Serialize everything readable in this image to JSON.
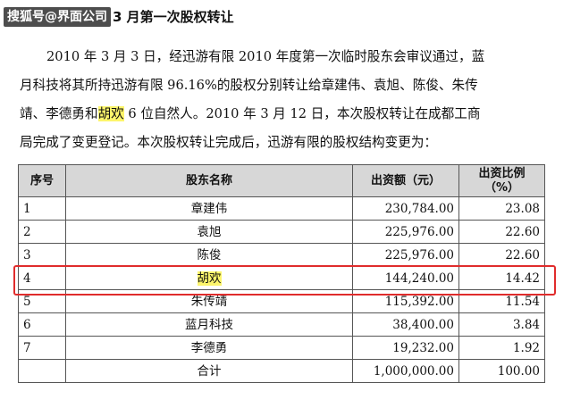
{
  "heading": {
    "watermark": "搜狐号@界面公司",
    "title": "3 月第一次股权转让"
  },
  "paragraph": {
    "line1": "2010 年 3 月 3 日，经迅游有限 2010 年度第一次临时股东会审议通过，蓝",
    "line2": "月科技将其所持迅游有限 96.16%的股权分别转让给章建伟、袁旭、陈俊、朱传",
    "line3_pre": "靖、李德勇和",
    "line3_hl": "胡欢",
    "line3_post": " 6 位自然人。2010 年 3 月 12 日，本次股权转让在成都工商",
    "line4": "局完成了变更登记。本次股权转让完成后，迅游有限的股权结构变更为："
  },
  "table": {
    "headers": {
      "no": "序号",
      "name": "股东名称",
      "amount": "出资额（元）",
      "ratio_l1": "出资比例",
      "ratio_l2": "（%）"
    },
    "rows": [
      {
        "no": "1",
        "name": "章建伟",
        "amount": "230,784.00",
        "ratio": "23.08"
      },
      {
        "no": "2",
        "name": "袁旭",
        "amount": "225,976.00",
        "ratio": "22.60"
      },
      {
        "no": "3",
        "name": "陈俊",
        "amount": "225,976.00",
        "ratio": "22.60"
      },
      {
        "no": "4",
        "name": "胡欢",
        "amount": "144,240.00",
        "ratio": "14.42"
      },
      {
        "no": "5",
        "name": "朱传靖",
        "amount": "115,392.00",
        "ratio": "11.54"
      },
      {
        "no": "6",
        "name": "蓝月科技",
        "amount": "38,400.00",
        "ratio": "3.84"
      },
      {
        "no": "7",
        "name": "李德勇",
        "amount": "19,232.00",
        "ratio": "1.92"
      }
    ],
    "total": {
      "label": "合计",
      "amount": "1,000,000.00",
      "ratio": "100.00"
    }
  },
  "highlight_color": "#fdf56b",
  "box_color": "#e02c2c"
}
